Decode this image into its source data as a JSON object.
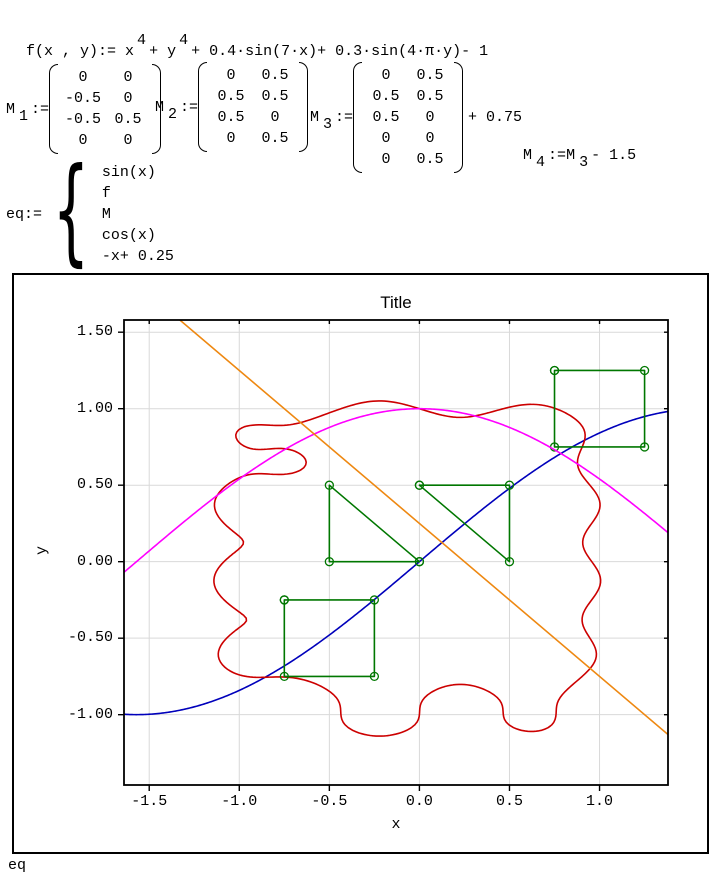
{
  "formulas": {
    "f_def": {
      "pre": "f(x , y):= x",
      "sup1": "4",
      "mid": "+ y",
      "sup2": "4",
      "post": "+ 0.4·sin(7·x)+ 0.3·sin(4·π·y)- 1"
    },
    "m1": {
      "name": "M",
      "sub": "1",
      "assign": ":=",
      "rows": [
        [
          "0",
          "0"
        ],
        [
          "-0.5",
          "0"
        ],
        [
          "-0.5",
          "0.5"
        ],
        [
          "0",
          "0"
        ]
      ]
    },
    "m2": {
      "name": "M",
      "sub": "2",
      "assign": ":=",
      "rows": [
        [
          "0",
          "0.5"
        ],
        [
          "0.5",
          "0.5"
        ],
        [
          "0.5",
          "0"
        ],
        [
          "0",
          "0.5"
        ]
      ]
    },
    "m3": {
      "name": "M",
      "sub": "3",
      "assign": ":=",
      "rows": [
        [
          "0",
          "0.5"
        ],
        [
          "0.5",
          "0.5"
        ],
        [
          "0.5",
          "0"
        ],
        [
          "0",
          "0"
        ],
        [
          "0",
          "0.5"
        ]
      ],
      "suffix": "+ 0.75"
    },
    "m4": {
      "lhs_name": "M",
      "lhs_sub": "4",
      "assign": ":=",
      "rhs_name": "M",
      "rhs_sub": "3",
      "rhs_rest": "- 1.5"
    },
    "eq": {
      "name": "eq",
      "assign": ":=",
      "brace": "{",
      "items": [
        "sin(x)",
        "f",
        "M",
        "cos(x)",
        "-x+ 0.25"
      ]
    }
  },
  "footer": {
    "label": "eq"
  },
  "chart_data": {
    "type": "line",
    "title": "Title",
    "xlabel": "x",
    "ylabel": "y",
    "xlim": [
      -1.64,
      1.38
    ],
    "ylim": [
      -1.46,
      1.58
    ],
    "grid": true,
    "x_ticks": [
      -1.5,
      -1.0,
      -0.5,
      0.0,
      0.5,
      1.0
    ],
    "x_tick_labels": [
      "-1.5",
      "-1.0",
      "-0.5",
      "0.0",
      "0.5",
      "1.0"
    ],
    "y_ticks": [
      1.5,
      1.0,
      0.5,
      0.0,
      -0.5,
      -1.0
    ],
    "y_tick_labels": [
      "1.50",
      "1.00",
      "0.50",
      "0.00",
      "-0.50",
      "-1.00"
    ],
    "colors": {
      "grid": "#d9d9d9",
      "frame": "#000000"
    },
    "series": [
      {
        "name": "sin(x)",
        "kind": "sin",
        "color": "#0000bb"
      },
      {
        "name": "f(x,y)=0",
        "kind": "implicit",
        "color": "#cc0000",
        "params": {
          "power": 4,
          "a": 0.4,
          "wx": 7,
          "b": 0.3,
          "wy_pi": 4,
          "c": -1
        }
      },
      {
        "name": "M1",
        "kind": "polyline",
        "color": "#007700",
        "marker": "circle",
        "points": [
          [
            0,
            0
          ],
          [
            -0.5,
            0
          ],
          [
            -0.5,
            0.5
          ],
          [
            0,
            0
          ]
        ]
      },
      {
        "name": "M2",
        "kind": "polyline",
        "color": "#007700",
        "marker": "circle",
        "points": [
          [
            0,
            0.5
          ],
          [
            0.5,
            0.5
          ],
          [
            0.5,
            0
          ],
          [
            0,
            0.5
          ]
        ]
      },
      {
        "name": "M3",
        "kind": "polyline",
        "color": "#007700",
        "marker": "circle",
        "points": [
          [
            0.75,
            1.25
          ],
          [
            1.25,
            1.25
          ],
          [
            1.25,
            0.75
          ],
          [
            0.75,
            0.75
          ],
          [
            0.75,
            1.25
          ]
        ]
      },
      {
        "name": "M4",
        "kind": "polyline",
        "color": "#007700",
        "marker": "circle",
        "points": [
          [
            -0.75,
            -0.25
          ],
          [
            -0.25,
            -0.25
          ],
          [
            -0.25,
            -0.75
          ],
          [
            -0.75,
            -0.75
          ],
          [
            -0.75,
            -0.25
          ]
        ]
      },
      {
        "name": "cos(x)",
        "kind": "cos",
        "color": "#ff00ff"
      },
      {
        "name": "-x+0.25",
        "kind": "linear",
        "m": -1,
        "b": 0.25,
        "color": "#ee8811"
      }
    ]
  }
}
